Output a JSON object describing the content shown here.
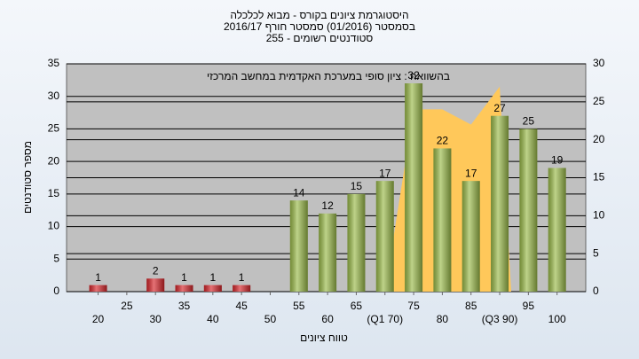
{
  "chart_data": {
    "type": "bar",
    "title": "היסטוגרמת ציונים בקורס - מבוא לכלכלה",
    "subtitle": [
      "בסמסטר (01/2016) סמסטר חורף 2016/17",
      "סטודנטים רשומים - 255"
    ],
    "annotation": "בהשוואה : ציון סופי במערכת האקדמית במחשב המרכזי",
    "x_label": "טווח ציונים",
    "y_label": "מספר סטודנטים",
    "x": [
      20,
      25,
      30,
      35,
      40,
      45,
      50,
      55,
      60,
      65,
      70,
      75,
      80,
      85,
      90,
      95,
      100
    ],
    "values": [
      1,
      null,
      2,
      1,
      1,
      1,
      null,
      14,
      12,
      15,
      17,
      32,
      22,
      17,
      27,
      25,
      19
    ],
    "colors": [
      "#d8262b",
      null,
      "#d8262b",
      "#d8262b",
      "#d8262b",
      "#d8262b",
      null,
      "#9bbb4a",
      "#9bbb4a",
      "#9bbb4a",
      "#9bbb4a",
      "#9bbb4a",
      "#9bbb4a",
      "#9bbb4a",
      "#9bbb4a",
      "#9bbb4a",
      "#9bbb4a"
    ],
    "area": {
      "type": "area",
      "axis": "y2",
      "color": "#ffc85a",
      "x": [
        70,
        75,
        80,
        85,
        90,
        92
      ],
      "values": [
        0,
        24,
        24,
        22,
        27,
        0
      ]
    },
    "xlim": [
      14.5,
      105
    ],
    "xticks": [
      20,
      25,
      30,
      35,
      40,
      45,
      50,
      55,
      60,
      65,
      {
        "value": 70,
        "label": "(Q1 70)"
      },
      75,
      80,
      85,
      {
        "value": 90,
        "label": "(Q3 90)"
      },
      95,
      100
    ],
    "ylim": [
      0,
      35
    ],
    "yticks": [
      0,
      5,
      10,
      15,
      20,
      25,
      30,
      35
    ],
    "y2lim": [
      0,
      30
    ],
    "y2ticks": [
      0,
      5,
      10,
      15,
      20,
      25,
      30
    ],
    "grid": true
  }
}
